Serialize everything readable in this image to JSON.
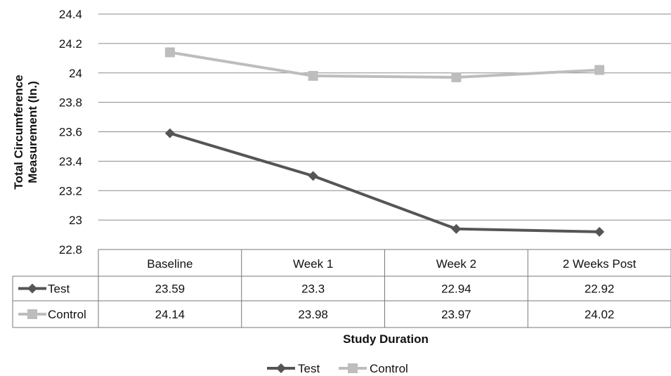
{
  "chart_data": {
    "type": "line",
    "title": "",
    "xlabel": "Study Duration",
    "ylabel": "Total Circumference Measurement (In.)",
    "ylim": [
      22.8,
      24.4
    ],
    "ytick_step": 0.2,
    "yticks": [
      "22.8",
      "23",
      "23.2",
      "23.4",
      "23.6",
      "23.8",
      "24",
      "24.2",
      "24.4"
    ],
    "grid": true,
    "legend": "bottom",
    "categories": [
      "Baseline",
      "Week 1",
      "Week 2",
      "2 Weeks Post"
    ],
    "series": [
      {
        "name": "Test",
        "marker": "diamond",
        "color": "#555555",
        "values": [
          23.59,
          23.3,
          22.94,
          22.92
        ],
        "labels": [
          "23.59",
          "23.3",
          "22.94",
          "22.92"
        ]
      },
      {
        "name": "Control",
        "marker": "square",
        "color": "#bdbdbd",
        "values": [
          24.14,
          23.98,
          23.97,
          24.02
        ],
        "labels": [
          "24.14",
          "23.98",
          "23.97",
          "24.02"
        ]
      }
    ]
  }
}
